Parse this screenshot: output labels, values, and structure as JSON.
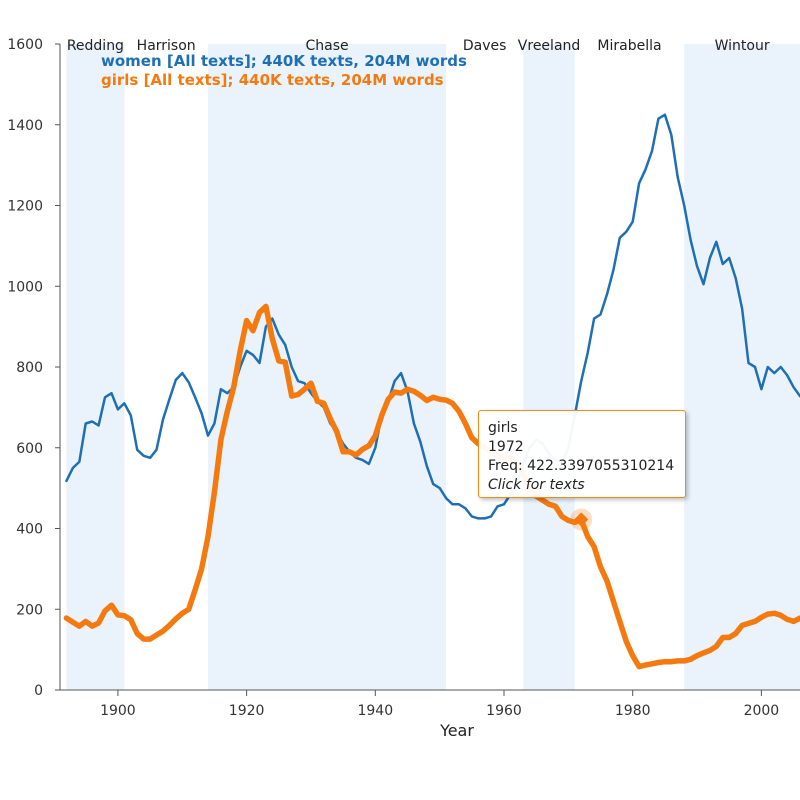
{
  "colors": {
    "women": "#1f6fb4",
    "girls": "#f47a10",
    "era_band": "#eaf3fb",
    "axis": "#555555"
  },
  "chart_data": {
    "type": "line",
    "xlabel": "Year",
    "ylabel": "",
    "xlim": [
      1891,
      2006
    ],
    "ylim": [
      0,
      1600
    ],
    "xticks": [
      1900,
      1920,
      1940,
      1960,
      1980,
      2000
    ],
    "yticks": [
      0,
      200,
      400,
      600,
      800,
      1000,
      1200,
      1400,
      1600
    ],
    "grid": false,
    "legend_position": "top-left",
    "eras": [
      {
        "name": "Redding",
        "start": 1892,
        "end": 1901,
        "shaded": true
      },
      {
        "name": "Harrison",
        "start": 1901,
        "end": 1914,
        "shaded": false
      },
      {
        "name": "Chase",
        "start": 1914,
        "end": 1951,
        "shaded": true
      },
      {
        "name": "Daves",
        "start": 1951,
        "end": 1963,
        "shaded": false
      },
      {
        "name": "Vreeland",
        "start": 1963,
        "end": 1971,
        "shaded": true
      },
      {
        "name": "Mirabella",
        "start": 1971,
        "end": 1988,
        "shaded": false
      },
      {
        "name": "Wintour",
        "start": 1988,
        "end": 2006,
        "shaded": true
      }
    ],
    "series": [
      {
        "name": "women [All texts]; 440K texts, 204M words",
        "color": "#1f6fb4",
        "x": [
          1892,
          1893,
          1894,
          1895,
          1896,
          1897,
          1898,
          1899,
          1900,
          1901,
          1902,
          1903,
          1904,
          1905,
          1906,
          1907,
          1908,
          1909,
          1910,
          1911,
          1912,
          1913,
          1914,
          1915,
          1916,
          1917,
          1918,
          1919,
          1920,
          1921,
          1922,
          1923,
          1924,
          1925,
          1926,
          1927,
          1928,
          1929,
          1930,
          1931,
          1932,
          1933,
          1934,
          1935,
          1936,
          1937,
          1938,
          1939,
          1940,
          1941,
          1942,
          1943,
          1944,
          1945,
          1946,
          1947,
          1948,
          1949,
          1950,
          1951,
          1952,
          1953,
          1954,
          1955,
          1956,
          1957,
          1958,
          1959,
          1960,
          1961,
          1962,
          1963,
          1964,
          1965,
          1966,
          1967,
          1968,
          1969,
          1970,
          1971,
          1972,
          1973,
          1974,
          1975,
          1976,
          1977,
          1978,
          1979,
          1980,
          1981,
          1982,
          1983,
          1984,
          1985,
          1986,
          1987,
          1988,
          1989,
          1990,
          1991,
          1992,
          1993,
          1994,
          1995,
          1996,
          1997,
          1998,
          1999,
          2000,
          2001,
          2002,
          2003,
          2004,
          2005,
          2006
        ],
        "values": [
          518,
          550,
          565,
          660,
          665,
          655,
          725,
          735,
          695,
          710,
          680,
          595,
          580,
          575,
          595,
          670,
          720,
          768,
          785,
          762,
          725,
          685,
          630,
          660,
          745,
          735,
          750,
          800,
          840,
          830,
          810,
          900,
          920,
          880,
          855,
          800,
          765,
          760,
          735,
          715,
          700,
          660,
          640,
          610,
          590,
          575,
          570,
          560,
          600,
          680,
          715,
          765,
          785,
          740,
          660,
          615,
          555,
          510,
          500,
          475,
          460,
          460,
          450,
          430,
          425,
          425,
          430,
          455,
          460,
          485,
          510,
          560,
          600,
          620,
          610,
          585,
          570,
          565,
          600,
          680,
          765,
          835,
          920,
          930,
          980,
          1040,
          1120,
          1135,
          1160,
          1255,
          1290,
          1335,
          1415,
          1425,
          1375,
          1270,
          1200,
          1115,
          1050,
          1005,
          1070,
          1110,
          1055,
          1070,
          1020,
          945,
          810,
          800,
          745,
          800,
          785,
          800,
          780,
          750,
          728
        ]
      },
      {
        "name": "girls [All texts]; 440K texts, 204M words",
        "color": "#f47a10",
        "x": [
          1892,
          1893,
          1894,
          1895,
          1896,
          1897,
          1898,
          1899,
          1900,
          1901,
          1902,
          1903,
          1904,
          1905,
          1906,
          1907,
          1908,
          1909,
          1910,
          1911,
          1912,
          1913,
          1914,
          1915,
          1916,
          1917,
          1918,
          1919,
          1920,
          1921,
          1922,
          1923,
          1924,
          1925,
          1926,
          1927,
          1928,
          1929,
          1930,
          1931,
          1932,
          1933,
          1934,
          1935,
          1936,
          1937,
          1938,
          1939,
          1940,
          1941,
          1942,
          1943,
          1944,
          1945,
          1946,
          1947,
          1948,
          1949,
          1950,
          1951,
          1952,
          1953,
          1954,
          1955,
          1956,
          1957,
          1958,
          1959,
          1960,
          1961,
          1962,
          1963,
          1964,
          1965,
          1966,
          1967,
          1968,
          1969,
          1970,
          1971,
          1972,
          1973,
          1974,
          1975,
          1976,
          1977,
          1978,
          1979,
          1980,
          1981,
          1982,
          1983,
          1984,
          1985,
          1986,
          1987,
          1988,
          1989,
          1990,
          1991,
          1992,
          1993,
          1994,
          1995,
          1996,
          1997,
          1998,
          1999,
          2000,
          2001,
          2002,
          2003,
          2004,
          2005,
          2006
        ],
        "values": [
          178,
          168,
          158,
          170,
          158,
          166,
          196,
          210,
          186,
          184,
          174,
          140,
          126,
          126,
          136,
          146,
          160,
          176,
          190,
          200,
          248,
          300,
          380,
          490,
          620,
          690,
          750,
          840,
          915,
          890,
          935,
          950,
          870,
          815,
          812,
          728,
          732,
          745,
          760,
          715,
          710,
          672,
          640,
          590,
          590,
          582,
          596,
          605,
          630,
          680,
          720,
          738,
          735,
          745,
          740,
          730,
          717,
          725,
          720,
          718,
          710,
          690,
          660,
          625,
          610,
          600,
          590,
          580,
          575,
          575,
          560,
          535,
          500,
          480,
          470,
          460,
          455,
          430,
          420,
          415,
          422,
          380,
          355,
          305,
          270,
          220,
          170,
          120,
          85,
          58,
          62,
          65,
          68,
          70,
          70,
          72,
          72,
          76,
          85,
          92,
          98,
          108,
          130,
          130,
          140,
          160,
          165,
          170,
          180,
          188,
          190,
          185,
          175,
          170,
          178
        ]
      }
    ],
    "tooltip": {
      "word": "girls",
      "year": "1972",
      "freq": "Freq: 422.3397055310214",
      "hint": "Click for texts",
      "point_x": 1972,
      "point_y": 422.34
    }
  }
}
